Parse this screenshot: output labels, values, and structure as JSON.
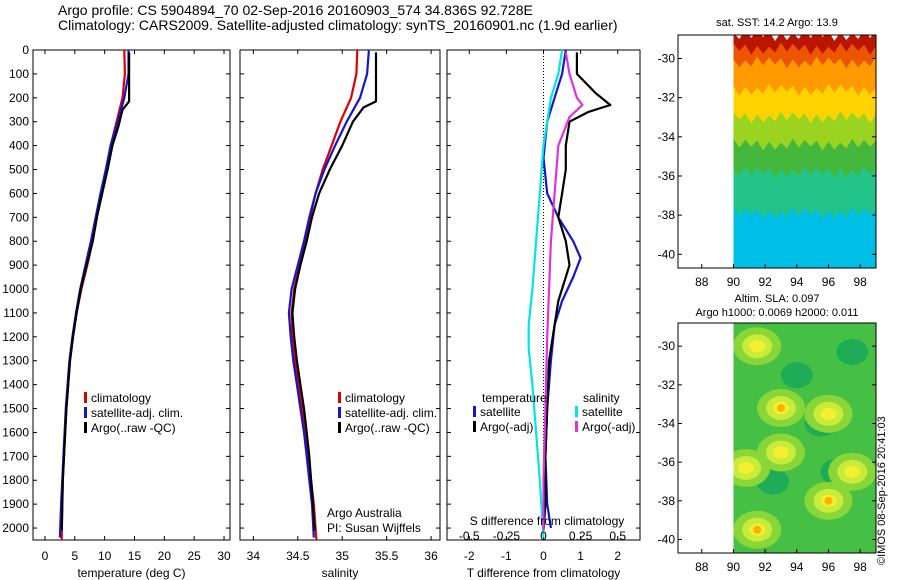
{
  "titles": {
    "line1": "Argo profile: CS 5904894_70 02-Sep-2016 20160903_574 34.836S 92.728E",
    "line2": "Climatology: CARS2009. Satellite-adjusted climatology: synTS_20160901.nc (1.9d earlier)"
  },
  "credit": "©IMOS 08-Sep-2016 20:41:03",
  "colors": {
    "climatology": "#dd0000",
    "satellite": "#1515cc",
    "argo": "#000000",
    "satellite_s": "#00e5e5",
    "argo_s": "#e030e0"
  },
  "chart_data": [
    {
      "type": "line",
      "xlabel": "temperature (deg C)",
      "xlim": [
        -2,
        31
      ],
      "xticks": [
        0,
        5,
        10,
        15,
        20,
        25,
        30
      ],
      "ylim": [
        0,
        2050
      ],
      "yticks": [
        0,
        100,
        200,
        300,
        400,
        500,
        600,
        700,
        800,
        900,
        1000,
        1100,
        1200,
        1300,
        1400,
        1500,
        1600,
        1700,
        1800,
        1900,
        2000
      ],
      "legend": [
        "climatology",
        "satellite-adj. clim.",
        "Argo(..raw -QC)"
      ],
      "series": [
        {
          "name": "climatology",
          "color": "#dd0000",
          "points": [
            [
              13.3,
              0
            ],
            [
              13.4,
              100
            ],
            [
              13.0,
              200
            ],
            [
              12.0,
              300
            ],
            [
              11.0,
              400
            ],
            [
              10.3,
              500
            ],
            [
              9.5,
              600
            ],
            [
              8.7,
              700
            ],
            [
              8.0,
              800
            ],
            [
              7.1,
              900
            ],
            [
              6.1,
              1000
            ],
            [
              5.3,
              1100
            ],
            [
              4.7,
              1200
            ],
            [
              4.2,
              1300
            ],
            [
              3.9,
              1400
            ],
            [
              3.6,
              1500
            ],
            [
              3.4,
              1600
            ],
            [
              3.2,
              1700
            ],
            [
              3.0,
              1800
            ],
            [
              2.9,
              1900
            ],
            [
              2.8,
              2050
            ]
          ]
        },
        {
          "name": "satellite-adj. clim.",
          "color": "#1515cc",
          "points": [
            [
              14.0,
              0
            ],
            [
              14.0,
              100
            ],
            [
              13.3,
              200
            ],
            [
              12.2,
              300
            ],
            [
              11.0,
              400
            ],
            [
              10.2,
              500
            ],
            [
              9.3,
              600
            ],
            [
              8.5,
              700
            ],
            [
              7.7,
              800
            ],
            [
              6.8,
              900
            ],
            [
              5.9,
              1000
            ],
            [
              5.2,
              1100
            ],
            [
              4.6,
              1200
            ],
            [
              4.1,
              1300
            ],
            [
              3.8,
              1400
            ],
            [
              3.5,
              1500
            ],
            [
              3.3,
              1600
            ],
            [
              3.1,
              1700
            ],
            [
              2.9,
              1800
            ],
            [
              2.7,
              1900
            ],
            [
              2.5,
              2040
            ]
          ]
        },
        {
          "name": "Argo(..raw -QC)",
          "color": "#000000",
          "points": [
            [
              14.1,
              10
            ],
            [
              14.1,
              100
            ],
            [
              14.1,
              215
            ],
            [
              13.0,
              250
            ],
            [
              12.3,
              320
            ],
            [
              11.3,
              400
            ],
            [
              10.5,
              500
            ],
            [
              9.6,
              600
            ],
            [
              8.7,
              700
            ],
            [
              8.0,
              800
            ],
            [
              7.0,
              900
            ],
            [
              6.0,
              1000
            ],
            [
              5.3,
              1100
            ],
            [
              4.7,
              1200
            ],
            [
              4.2,
              1300
            ],
            [
              3.9,
              1400
            ],
            [
              3.6,
              1500
            ],
            [
              3.4,
              1600
            ],
            [
              3.2,
              1700
            ],
            [
              3.0,
              1800
            ],
            [
              2.9,
              1900
            ],
            [
              2.8,
              2010
            ]
          ]
        }
      ]
    },
    {
      "type": "line",
      "xlabel": "salinity",
      "xlim": [
        33.85,
        36.1
      ],
      "xticks": [
        34,
        34.5,
        35,
        35.5,
        36
      ],
      "ylim": [
        0,
        2050
      ],
      "legend": [
        "climatology",
        "satellite-adj. clim.",
        "Argo(..raw -QC)"
      ],
      "annotation": [
        "Argo Australia",
        "PI: Susan Wijffels"
      ],
      "series": [
        {
          "name": "climatology",
          "color": "#dd0000",
          "points": [
            [
              35.17,
              0
            ],
            [
              35.16,
              100
            ],
            [
              35.1,
              200
            ],
            [
              34.98,
              300
            ],
            [
              34.88,
              400
            ],
            [
              34.78,
              500
            ],
            [
              34.7,
              600
            ],
            [
              34.64,
              700
            ],
            [
              34.58,
              800
            ],
            [
              34.52,
              900
            ],
            [
              34.46,
              1000
            ],
            [
              34.43,
              1100
            ],
            [
              34.44,
              1200
            ],
            [
              34.47,
              1300
            ],
            [
              34.51,
              1400
            ],
            [
              34.55,
              1500
            ],
            [
              34.59,
              1600
            ],
            [
              34.62,
              1700
            ],
            [
              34.65,
              1800
            ],
            [
              34.68,
              1900
            ],
            [
              34.71,
              2050
            ]
          ]
        },
        {
          "name": "satellite-adj. clim.",
          "color": "#1515cc",
          "points": [
            [
              35.3,
              0
            ],
            [
              35.28,
              100
            ],
            [
              35.2,
              200
            ],
            [
              35.05,
              300
            ],
            [
              34.92,
              400
            ],
            [
              34.8,
              500
            ],
            [
              34.7,
              600
            ],
            [
              34.63,
              700
            ],
            [
              34.57,
              800
            ],
            [
              34.5,
              900
            ],
            [
              34.43,
              1000
            ],
            [
              34.4,
              1100
            ],
            [
              34.42,
              1200
            ],
            [
              34.45,
              1300
            ],
            [
              34.49,
              1400
            ],
            [
              34.53,
              1500
            ],
            [
              34.57,
              1600
            ],
            [
              34.6,
              1700
            ],
            [
              34.63,
              1800
            ],
            [
              34.66,
              1900
            ],
            [
              34.68,
              2040
            ]
          ]
        },
        {
          "name": "Argo(..raw -QC)",
          "color": "#000000",
          "points": [
            [
              35.38,
              10
            ],
            [
              35.38,
              100
            ],
            [
              35.38,
              215
            ],
            [
              35.24,
              240
            ],
            [
              35.12,
              300
            ],
            [
              35.0,
              400
            ],
            [
              34.86,
              500
            ],
            [
              34.74,
              600
            ],
            [
              34.66,
              700
            ],
            [
              34.6,
              800
            ],
            [
              34.53,
              900
            ],
            [
              34.47,
              1000
            ],
            [
              34.44,
              1100
            ],
            [
              34.46,
              1200
            ],
            [
              34.49,
              1300
            ],
            [
              34.53,
              1400
            ],
            [
              34.57,
              1500
            ],
            [
              34.6,
              1600
            ],
            [
              34.63,
              1700
            ],
            [
              34.65,
              1800
            ],
            [
              34.67,
              1900
            ],
            [
              34.69,
              2010
            ]
          ]
        }
      ]
    },
    {
      "type": "line",
      "xlabel": "T difference from climatology",
      "xlabel2": "S difference from climatology",
      "xlim": [
        -2.6,
        2.6
      ],
      "xticks": [
        -2,
        -1,
        0,
        1,
        2
      ],
      "xticks2": [
        -0.5,
        -0.25,
        0,
        0.25,
        0.5
      ],
      "ylim": [
        0,
        2050
      ],
      "legend_headers": [
        "temperature",
        "salinity"
      ],
      "legend": [
        "satellite",
        "Argo(-adj)",
        "satellite",
        "Argo(-adj)"
      ],
      "series": [
        {
          "name": "satellite",
          "color": "#1515cc",
          "points": [
            [
              0.6,
              0
            ],
            [
              0.5,
              100
            ],
            [
              0.3,
              200
            ],
            [
              0.1,
              300
            ],
            [
              0.0,
              450
            ],
            [
              0.1,
              600
            ],
            [
              0.4,
              700
            ],
            [
              0.8,
              800
            ],
            [
              1.0,
              870
            ],
            [
              0.8,
              950
            ],
            [
              0.5,
              1050
            ],
            [
              0.3,
              1150
            ],
            [
              0.2,
              1300
            ],
            [
              0.1,
              1500
            ],
            [
              0.05,
              1700
            ],
            [
              0.1,
              1900
            ],
            [
              0.2,
              2000
            ]
          ]
        },
        {
          "name": "Argo(-adj)",
          "color": "#000000",
          "points": [
            [
              0.9,
              10
            ],
            [
              0.9,
              100
            ],
            [
              1.4,
              180
            ],
            [
              1.8,
              230
            ],
            [
              1.2,
              260
            ],
            [
              0.7,
              300
            ],
            [
              0.6,
              400
            ],
            [
              0.6,
              500
            ],
            [
              0.5,
              600
            ],
            [
              0.4,
              700
            ],
            [
              0.6,
              800
            ],
            [
              0.7,
              900
            ],
            [
              0.6,
              950
            ],
            [
              0.4,
              1050
            ],
            [
              0.3,
              1150
            ],
            [
              0.15,
              1300
            ],
            [
              0.1,
              1500
            ],
            [
              0.05,
              1700
            ],
            [
              0.05,
              1900
            ],
            [
              0.0,
              2010
            ]
          ]
        },
        {
          "name": "satellite",
          "color": "#00e5e5",
          "points": [
            [
              0.5,
              0
            ],
            [
              0.4,
              100
            ],
            [
              0.2,
              200
            ],
            [
              0.0,
              400
            ],
            [
              -0.1,
              600
            ],
            [
              -0.2,
              800
            ],
            [
              -0.3,
              1000
            ],
            [
              -0.4,
              1150
            ],
            [
              -0.4,
              1250
            ],
            [
              -0.3,
              1400
            ],
            [
              -0.2,
              1600
            ],
            [
              -0.1,
              1800
            ],
            [
              0.0,
              2040
            ]
          ]
        },
        {
          "name": "Argo(-adj)",
          "color": "#e030e0",
          "points": [
            [
              0.6,
              10
            ],
            [
              0.7,
              100
            ],
            [
              0.9,
              200
            ],
            [
              1.05,
              230
            ],
            [
              0.7,
              280
            ],
            [
              0.4,
              400
            ],
            [
              0.3,
              600
            ],
            [
              0.2,
              800
            ],
            [
              0.15,
              1000
            ],
            [
              0.1,
              1200
            ],
            [
              0.05,
              1500
            ],
            [
              0.0,
              1800
            ],
            [
              0.0,
              2010
            ]
          ]
        }
      ]
    },
    {
      "type": "heatmap",
      "title": "sat. SST: 14.2  Argo: 13.9",
      "xlim": [
        86.5,
        99
      ],
      "xticks": [
        88,
        90,
        92,
        94,
        96,
        98
      ],
      "ylim": [
        -40.7,
        -28.8
      ],
      "yticks": [
        -30,
        -32,
        -34,
        -36,
        -38,
        -40
      ],
      "data_xlim": [
        90,
        99
      ],
      "colormap": [
        "#00bfe6",
        "#22c48a",
        "#44b83c",
        "#9ad420",
        "#ffd200",
        "#ff9a00",
        "#ee5500",
        "#bb1500"
      ],
      "rows_north_to_south": [
        7,
        6,
        5,
        5,
        4,
        4,
        3,
        3,
        2,
        2,
        1,
        1,
        1,
        0,
        0,
        0,
        0
      ]
    },
    {
      "type": "heatmap",
      "title": "Altim. SLA: 0.097",
      "title2": "Argo h1000: 0.0069 h2000: 0.011",
      "xlim": [
        86.5,
        99
      ],
      "xticks": [
        88,
        90,
        92,
        94,
        96,
        98
      ],
      "ylim": [
        -40.7,
        -28.8
      ],
      "yticks": [
        -30,
        -32,
        -34,
        -36,
        -38,
        -40
      ],
      "data_xlim": [
        90,
        99
      ],
      "colormap": [
        "#19a85a",
        "#45c045",
        "#88d638",
        "#c9ec3a",
        "#f2f030"
      ],
      "hotspots": [
        [
          91.5,
          -30.0,
          0.35
        ],
        [
          96.0,
          -33.5,
          0.1
        ],
        [
          93.0,
          -33.2,
          0.8
        ],
        [
          96.0,
          -38.0,
          0.9
        ],
        [
          93.0,
          -35.5,
          0.2
        ],
        [
          97.5,
          -36.5,
          0.3
        ],
        [
          90.8,
          -36.3,
          0.25
        ],
        [
          91.5,
          -39.5,
          0.55
        ]
      ],
      "lows": [
        [
          95.5,
          -34.0
        ],
        [
          96.5,
          -36.5
        ],
        [
          92.5,
          -37.0
        ],
        [
          97.5,
          -30.3
        ],
        [
          94.0,
          -31.5
        ]
      ]
    }
  ]
}
